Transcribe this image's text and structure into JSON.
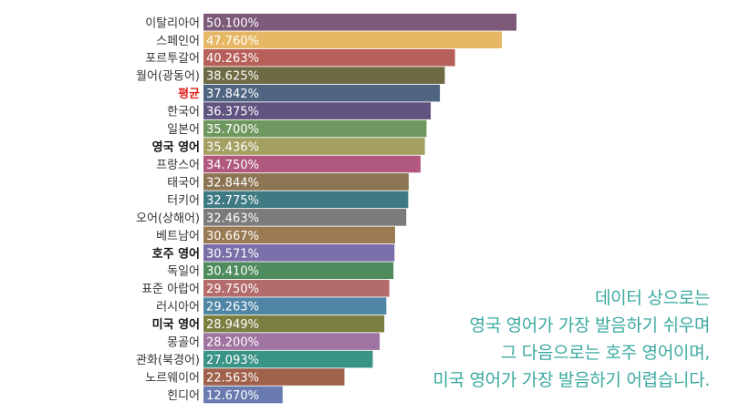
{
  "chart_data": {
    "type": "bar",
    "orientation": "horizontal",
    "categories": [
      "이탈리아어",
      "스페인어",
      "포르투갈어",
      "월어(광동어)",
      "평균",
      "한국어",
      "일본어",
      "영국 영어",
      "프랑스어",
      "태국어",
      "터키어",
      "오어(상해어)",
      "베트남어",
      "호주 영어",
      "독일어",
      "표준 아랍어",
      "러시아어",
      "미국 영어",
      "몽골어",
      "관화(북경어)",
      "노르웨이어",
      "힌디어"
    ],
    "values": [
      50.1,
      47.76,
      40.263,
      38.625,
      37.842,
      36.375,
      35.7,
      35.436,
      34.75,
      32.844,
      32.775,
      32.463,
      30.667,
      30.571,
      30.41,
      29.75,
      29.263,
      28.949,
      28.2,
      27.093,
      22.563,
      12.67
    ],
    "value_labels": [
      "50.100%",
      "47.760%",
      "40.263%",
      "38.625%",
      "37.842%",
      "36.375%",
      "35.700%",
      "35.436%",
      "34.750%",
      "32.844%",
      "32.775%",
      "32.463%",
      "30.667%",
      "30.571%",
      "30.410%",
      "29.750%",
      "29.263%",
      "28.949%",
      "28.200%",
      "27.093%",
      "22.563%",
      "12.670%"
    ],
    "colors": [
      "#7d5a79",
      "#e6b865",
      "#b7605a",
      "#6e6a43",
      "#4f6581",
      "#5f5480",
      "#6f9860",
      "#a3a062",
      "#b1587e",
      "#8d7553",
      "#3e7a82",
      "#7b7b7b",
      "#9a7a52",
      "#7a6fa9",
      "#4e8c5e",
      "#b36b6b",
      "#4f86a5",
      "#7b7f40",
      "#9f74a0",
      "#3a9485",
      "#a0614a",
      "#6a7bb0"
    ],
    "highlight": {
      "평균": "#e02020",
      "영국 영어": "#111111",
      "호주 영어": "#111111",
      "미국 영어": "#111111"
    },
    "xlim": [
      0,
      51
    ],
    "grid": false,
    "legend": "none"
  },
  "caption": {
    "lines": [
      "데이터 상으로는",
      "영국 영어가 가장 발음하기 쉬우며",
      "그 다음으로는 호주 영어이며,",
      "미국 영어가 가장 발음하기 어렵습니다."
    ]
  }
}
